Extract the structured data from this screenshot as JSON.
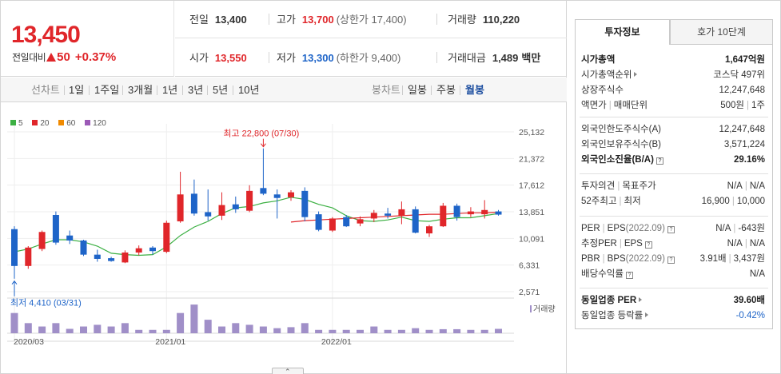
{
  "price": {
    "current": "13,450",
    "change_label": "전일대비",
    "change_value": "50",
    "change_pct": "+0.37%"
  },
  "quotes": {
    "prev_close_label": "전일",
    "prev_close": "13,400",
    "high_label": "고가",
    "high": "13,700",
    "upper_limit": "(상한가 17,400)",
    "volume_label": "거래량",
    "volume": "110,220",
    "open_label": "시가",
    "open": "13,550",
    "low_label": "저가",
    "low": "13,300",
    "lower_limit": "(하한가 9,400)",
    "amount_label": "거래대금",
    "amount": "1,489",
    "amount_unit": "백만"
  },
  "toolbar": {
    "line_label": "선차트",
    "line_periods": [
      "1일",
      "1주일",
      "3개월",
      "1년",
      "3년",
      "5년",
      "10년"
    ],
    "candle_label": "봉차트",
    "candle_periods": [
      "일봉",
      "주봉",
      "월봉"
    ],
    "active_candle": "월봉"
  },
  "legend": [
    {
      "label": "5",
      "color": "#3cb043"
    },
    {
      "label": "20",
      "color": "#e0262a"
    },
    {
      "label": "60",
      "color": "#f08a00"
    },
    {
      "label": "120",
      "color": "#9b59b6"
    }
  ],
  "chart_data": {
    "type": "candlestick",
    "title": "",
    "x_ticks": [
      "2020/03",
      "2021/01",
      "2022/01"
    ],
    "y_ticks": [
      25132,
      21372,
      17612,
      13851,
      10091,
      6331,
      2571
    ],
    "ylim": [
      2571,
      25132
    ],
    "annotations": {
      "high_label": "최고 22,800 (07/30)",
      "low_label": "최저 4,410 (03/31)"
    },
    "volume_label": "거래량",
    "up_color": "#e0262a",
    "down_color": "#1e64c8",
    "candles": [
      {
        "o": 11400,
        "h": 11800,
        "l": 4410,
        "c": 6200
      },
      {
        "o": 6200,
        "h": 9000,
        "l": 5800,
        "c": 8800
      },
      {
        "o": 8600,
        "h": 11200,
        "l": 8300,
        "c": 11000
      },
      {
        "o": 13400,
        "h": 13900,
        "l": 9200,
        "c": 9500
      },
      {
        "o": 10500,
        "h": 11200,
        "l": 9300,
        "c": 9800
      },
      {
        "o": 9800,
        "h": 9900,
        "l": 7600,
        "c": 7800
      },
      {
        "o": 7800,
        "h": 8500,
        "l": 6800,
        "c": 7200
      },
      {
        "o": 7300,
        "h": 7500,
        "l": 6800,
        "c": 6900
      },
      {
        "o": 6700,
        "h": 8400,
        "l": 6600,
        "c": 8100
      },
      {
        "o": 8100,
        "h": 9100,
        "l": 7700,
        "c": 8700
      },
      {
        "o": 8800,
        "h": 9000,
        "l": 7800,
        "c": 8300
      },
      {
        "o": 8200,
        "h": 12600,
        "l": 8000,
        "c": 12300
      },
      {
        "o": 12500,
        "h": 19500,
        "l": 12300,
        "c": 16300
      },
      {
        "o": 16400,
        "h": 18400,
        "l": 13300,
        "c": 13600
      },
      {
        "o": 13800,
        "h": 17000,
        "l": 12600,
        "c": 13200
      },
      {
        "o": 13300,
        "h": 16600,
        "l": 12700,
        "c": 14800
      },
      {
        "o": 14900,
        "h": 16000,
        "l": 13700,
        "c": 14200
      },
      {
        "o": 14000,
        "h": 17600,
        "l": 13800,
        "c": 16800
      },
      {
        "o": 17200,
        "h": 22800,
        "l": 16200,
        "c": 16400
      },
      {
        "o": 16300,
        "h": 17000,
        "l": 12900,
        "c": 15800
      },
      {
        "o": 15900,
        "h": 16900,
        "l": 15400,
        "c": 16600
      },
      {
        "o": 16800,
        "h": 17300,
        "l": 12500,
        "c": 13100
      },
      {
        "o": 13500,
        "h": 13900,
        "l": 11100,
        "c": 11300
      },
      {
        "o": 11200,
        "h": 13100,
        "l": 11000,
        "c": 12900
      },
      {
        "o": 13100,
        "h": 13400,
        "l": 11700,
        "c": 11800
      },
      {
        "o": 12200,
        "h": 13200,
        "l": 11800,
        "c": 12800
      },
      {
        "o": 12900,
        "h": 14100,
        "l": 12400,
        "c": 13700
      },
      {
        "o": 13600,
        "h": 14400,
        "l": 12900,
        "c": 13300
      },
      {
        "o": 13300,
        "h": 15300,
        "l": 12100,
        "c": 14200
      },
      {
        "o": 14200,
        "h": 14600,
        "l": 10800,
        "c": 10900
      },
      {
        "o": 10800,
        "h": 12000,
        "l": 10300,
        "c": 11800
      },
      {
        "o": 11800,
        "h": 15100,
        "l": 11700,
        "c": 14700
      },
      {
        "o": 14700,
        "h": 15000,
        "l": 12600,
        "c": 13100
      },
      {
        "o": 13500,
        "h": 14500,
        "l": 13100,
        "c": 13900
      },
      {
        "o": 13500,
        "h": 15500,
        "l": 12900,
        "c": 14100
      },
      {
        "o": 13900,
        "h": 14100,
        "l": 13300,
        "c": 13450
      }
    ],
    "ma5": [
      8200,
      8600,
      9300,
      9900,
      9900,
      9600,
      9000,
      8000,
      7800,
      7700,
      7800,
      8900,
      10500,
      11700,
      12500,
      13600,
      14400,
      14600,
      15100,
      15400,
      15900,
      15600,
      14900,
      14400,
      13300,
      12600,
      12500,
      12700,
      13100,
      12600,
      12500,
      12800,
      13000,
      13000,
      13300,
      13600
    ],
    "ma20": [
      null,
      null,
      null,
      null,
      null,
      null,
      null,
      null,
      null,
      null,
      null,
      null,
      null,
      null,
      null,
      null,
      null,
      null,
      null,
      null,
      12400,
      12600,
      12700,
      12800,
      12900,
      13000,
      13100,
      13200,
      13300,
      13400,
      13500,
      13500,
      13600,
      13700,
      13700,
      13800
    ],
    "volume": [
      6,
      3,
      2,
      3,
      1.3,
      2,
      2.5,
      2,
      3,
      1,
      1,
      1,
      6,
      8.5,
      4,
      2,
      3,
      2.5,
      2,
      1.5,
      1.8,
      3,
      1,
      1,
      1,
      1,
      2,
      1,
      1,
      1.5,
      1,
      1.2,
      1.2,
      1,
      1,
      1.3
    ],
    "volume_scale": 9
  },
  "right": {
    "tab_info": "투자정보",
    "tab_orderbook": "호가 10단계",
    "rows": [
      {
        "key": "시가총액",
        "value": "1,647억원",
        "bold": true,
        "group": 1
      },
      {
        "key": "시가총액순위",
        "value": "코스닥 497위",
        "arrow": true,
        "group": 1
      },
      {
        "key": "상장주식수",
        "value": "12,247,648",
        "group": 1
      },
      {
        "key": "액면가",
        "key2": "매매단위",
        "value": "500원",
        "value2": "1주",
        "group": 1
      },
      {
        "key": "외국인한도주식수(A)",
        "value": "12,247,648",
        "group": 2
      },
      {
        "key": "외국인보유주식수(B)",
        "value": "3,571,224",
        "group": 2
      },
      {
        "key": "외국인소진율(B/A)",
        "value": "29.16%",
        "bold": true,
        "q": true,
        "group": 2
      },
      {
        "key": "투자의견",
        "key2": "목표주가",
        "value": "N/A",
        "value2": "N/A",
        "group": 3
      },
      {
        "key": "52주최고",
        "key2": "최저",
        "value": "16,900",
        "value2": "10,000",
        "group": 3
      },
      {
        "key": "PER",
        "key2": "EPS",
        "sub2": "(2022.09)",
        "value": "N/A",
        "value2": "-643원",
        "q": true,
        "group": 4
      },
      {
        "key": "추정PER",
        "key2": "EPS",
        "value": "N/A",
        "value2": "N/A",
        "q": true,
        "group": 4
      },
      {
        "key": "PBR",
        "key2": "BPS",
        "sub2": "(2022.09)",
        "value": "3.91배",
        "value2": "3,437원",
        "q": true,
        "group": 4
      },
      {
        "key": "배당수익률",
        "value": "N/A",
        "q": true,
        "group": 4
      },
      {
        "key": "동일업종 PER",
        "value": "39.60배",
        "bold": true,
        "arrow": true,
        "group": 5
      },
      {
        "key": "동일업종 등락률",
        "value": "-0.42%",
        "blue": true,
        "arrow": true,
        "group": 5
      }
    ]
  },
  "scroll_handle": "⌃"
}
